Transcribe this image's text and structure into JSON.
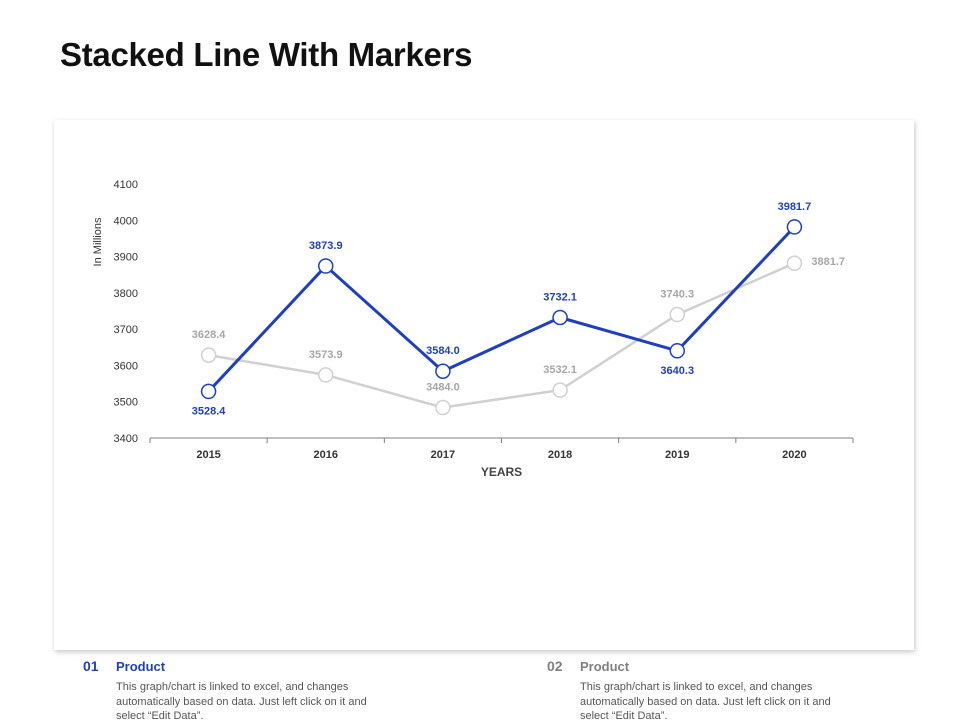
{
  "page": {
    "title": "Stacked Line With Markers"
  },
  "colors": {
    "series_1": "#1f3fbf",
    "series_2": "#d0d0d0",
    "series_2_label": "#a6a6a6",
    "axis": "#7f7f7f"
  },
  "chart_data": {
    "type": "line",
    "x": [
      "2015",
      "2016",
      "2017",
      "2018",
      "2019",
      "2020"
    ],
    "xlabel": "YEARS",
    "ylabel": "In Millions",
    "ylim": [
      3400,
      4100
    ],
    "yticks": [
      3400,
      3500,
      3600,
      3700,
      3800,
      3900,
      4000,
      4100
    ],
    "grid": false,
    "markers": true,
    "series": [
      {
        "values": [
          3528.4,
          3873.9,
          3584.0,
          3732.1,
          3640.3,
          3981.7
        ],
        "labels": [
          "3528.4",
          "3873.9",
          "3584.0",
          "3732.1",
          "3640.3",
          "3981.7"
        ],
        "color": "#1f3fbf"
      },
      {
        "values": [
          3628.4,
          3573.9,
          3484.0,
          3532.1,
          3740.3,
          3881.7
        ],
        "labels": [
          "3628.4",
          "3573.9",
          "3484.0",
          "3532.1",
          "3740.3",
          "3881.7"
        ],
        "color": "#d0d0d0"
      }
    ]
  },
  "products": [
    {
      "number": "01",
      "name": "Product",
      "description": "This graph/chart is linked to excel, and changes automatically based on data. Just left click on it and select “Edit Data”."
    },
    {
      "number": "02",
      "name": "Product",
      "description": "This graph/chart is linked to excel, and changes automatically based on data. Just left click on it and select “Edit Data”."
    }
  ]
}
